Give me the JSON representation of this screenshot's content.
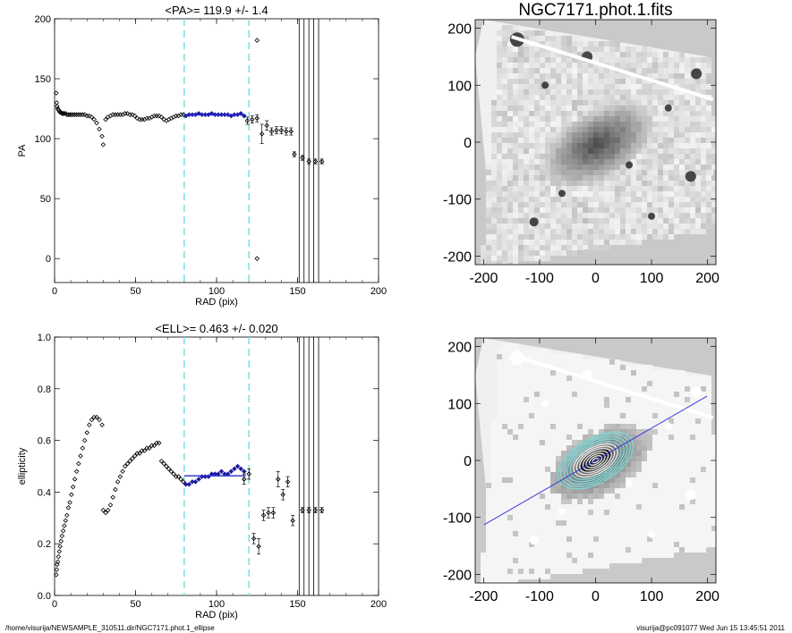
{
  "footer": {
    "path": "/home/visurija/NEWSAMPLE_310511.dir/NGC7171.phot.1_ellipse",
    "user_date": "visurija@pc091077  Wed Jun 15 13:45:51 2011"
  },
  "colors": {
    "data": "#000000",
    "fit_region": "#1a1aa0",
    "mean_line": "#2b2bcf",
    "limit_lines": "#7fe3e3",
    "ellipse_contours": "#7fd8d8",
    "major_axis": "#3a3adb"
  },
  "chart_data": [
    {
      "type": "scatter",
      "title": "<PA>= 119.9 +/-   1.4",
      "xlabel": "RAD (pix)",
      "ylabel": "PA",
      "xlim": [
        0,
        200
      ],
      "ylim": [
        -20,
        200
      ],
      "xticks": [
        "0",
        "50",
        "100",
        "150",
        "200"
      ],
      "yticks": [
        "0",
        "50",
        "100",
        "150",
        "200"
      ],
      "xtick_values": [
        0,
        50,
        100,
        150,
        200
      ],
      "ytick_values": [
        0,
        50,
        100,
        150,
        200
      ],
      "mean": 119.9,
      "mean_range": [
        80,
        118
      ],
      "limit_lines_x": [
        80,
        120
      ],
      "vertical_lines_x": [
        151,
        154,
        157,
        160,
        163
      ],
      "series": [
        {
          "style": "black",
          "x": [
            1,
            1.3,
            1.6,
            2,
            2.4,
            2.9,
            3.4,
            4,
            4.6,
            5.3,
            6,
            6.8,
            7.6,
            8.5,
            9.4,
            10.4,
            11.4,
            12.5,
            13.6,
            14.8,
            16,
            17.3,
            18.6,
            20,
            21.4,
            22.9,
            24.4,
            26,
            27.6,
            29.3,
            30,
            31.5,
            33,
            34.5,
            36,
            37.5,
            39,
            40.5,
            42,
            43.5,
            45,
            46.5,
            48,
            49.5,
            51,
            52.5,
            54,
            55.5,
            57,
            58.5,
            60,
            61.5,
            63,
            64.5,
            66,
            67.5,
            69,
            70.5,
            72,
            73.5,
            75,
            76.5,
            78,
            79.5
          ],
          "y": [
            138,
            130,
            127,
            125,
            124,
            123,
            122,
            122,
            121,
            121,
            121,
            121,
            120,
            120,
            120,
            120,
            120,
            120,
            120,
            120,
            120,
            120,
            120,
            119,
            119,
            118,
            116,
            113,
            108,
            102,
            95,
            116,
            118,
            119,
            120,
            120,
            120,
            120,
            120,
            121,
            121,
            120,
            120,
            119,
            117,
            116,
            116,
            116,
            117,
            117,
            118,
            119,
            119,
            119,
            118,
            116,
            115,
            116,
            117,
            118,
            119,
            119,
            120,
            120
          ]
        },
        {
          "style": "blue",
          "x": [
            81,
            83,
            85,
            87,
            89,
            91,
            93,
            95,
            97,
            99,
            101,
            103,
            105,
            107,
            109,
            111,
            113,
            115,
            117
          ],
          "y": [
            119,
            120,
            120,
            120,
            121,
            120,
            120,
            120,
            121,
            120,
            120,
            120,
            120,
            120,
            119,
            120,
            120,
            121,
            119
          ]
        },
        {
          "style": "errorbar",
          "x": [
            119,
            122,
            125,
            128,
            131,
            134,
            137,
            140,
            143,
            146,
            148,
            153,
            157,
            161,
            165
          ],
          "y": [
            115,
            116,
            117,
            104,
            111,
            106,
            107,
            107,
            106,
            106,
            87,
            84,
            81,
            81,
            81
          ],
          "err": [
            3,
            3,
            3,
            8,
            4,
            3,
            3,
            3,
            3,
            3,
            2,
            2,
            2,
            2,
            2
          ]
        },
        {
          "style": "outlier",
          "x": [
            125,
            125
          ],
          "y": [
            182,
            0
          ]
        }
      ]
    },
    {
      "type": "scatter",
      "title": "<ELL>= 0.463 +/-  0.020",
      "xlabel": "RAD (pix)",
      "ylabel": "ellipticity",
      "xlim": [
        0,
        200
      ],
      "ylim": [
        0.0,
        1.0
      ],
      "xticks": [
        "0",
        "50",
        "100",
        "150",
        "200"
      ],
      "yticks": [
        "0.0",
        "0.2",
        "0.4",
        "0.6",
        "0.8",
        "1.0"
      ],
      "xtick_values": [
        0,
        50,
        100,
        150,
        200
      ],
      "ytick_values": [
        0.0,
        0.2,
        0.4,
        0.6,
        0.8,
        1.0
      ],
      "mean": 0.463,
      "mean_range": [
        80,
        118
      ],
      "limit_lines_x": [
        80,
        120
      ],
      "vertical_lines_x": [
        151,
        154,
        157,
        160,
        163
      ],
      "series": [
        {
          "style": "black",
          "x": [
            1,
            1.3,
            1.6,
            2,
            2.4,
            2.9,
            3.4,
            4,
            4.6,
            5.3,
            6,
            6.8,
            7.6,
            8.5,
            9.4,
            10.4,
            11.4,
            12.5,
            13.6,
            14.8,
            16,
            17.3,
            18.6,
            20,
            21.4,
            22.9,
            24.4,
            26,
            27.6,
            29.3,
            30,
            31.5,
            33,
            34.5,
            36,
            37.5,
            39,
            40.5,
            42,
            43.5,
            45,
            46.5,
            48,
            49.5,
            51,
            52.5,
            54,
            55.5,
            57,
            58.5,
            60,
            61.5,
            63,
            64.5,
            66,
            67.5,
            69,
            70.5,
            72,
            73.5,
            75,
            76.5,
            78,
            79.5
          ],
          "y": [
            0.08,
            0.1,
            0.12,
            0.13,
            0.15,
            0.17,
            0.19,
            0.21,
            0.23,
            0.25,
            0.27,
            0.29,
            0.31,
            0.34,
            0.36,
            0.39,
            0.42,
            0.45,
            0.48,
            0.51,
            0.54,
            0.57,
            0.6,
            0.63,
            0.66,
            0.68,
            0.69,
            0.69,
            0.68,
            0.66,
            0.33,
            0.32,
            0.33,
            0.35,
            0.38,
            0.41,
            0.44,
            0.46,
            0.48,
            0.5,
            0.51,
            0.52,
            0.53,
            0.54,
            0.55,
            0.55,
            0.56,
            0.56,
            0.57,
            0.57,
            0.58,
            0.58,
            0.59,
            0.59,
            0.52,
            0.51,
            0.5,
            0.49,
            0.48,
            0.47,
            0.46,
            0.46,
            0.45,
            0.44
          ]
        },
        {
          "style": "blue",
          "x": [
            81,
            83,
            85,
            87,
            89,
            91,
            93,
            95,
            97,
            99,
            101,
            103,
            105,
            107,
            109,
            111,
            113,
            115,
            117
          ],
          "y": [
            0.43,
            0.43,
            0.44,
            0.44,
            0.45,
            0.46,
            0.46,
            0.46,
            0.47,
            0.47,
            0.47,
            0.48,
            0.47,
            0.47,
            0.48,
            0.49,
            0.5,
            0.49,
            0.48
          ]
        },
        {
          "style": "errorbar",
          "x": [
            117,
            120,
            123,
            126,
            129,
            132,
            135,
            138,
            141,
            144,
            147,
            153,
            157,
            161,
            165
          ],
          "y": [
            0.45,
            0.47,
            0.22,
            0.19,
            0.31,
            0.32,
            0.32,
            0.45,
            0.39,
            0.44,
            0.29,
            0.33,
            0.33,
            0.33,
            0.33
          ],
          "err": [
            0.02,
            0.02,
            0.02,
            0.03,
            0.02,
            0.02,
            0.02,
            0.03,
            0.02,
            0.02,
            0.02,
            0.01,
            0.01,
            0.01,
            0.01
          ]
        }
      ]
    },
    {
      "type": "heatmap",
      "title": "NGC7171.phot.1.fits",
      "xlabel": "",
      "ylabel": "",
      "xlim": [
        -215,
        215
      ],
      "ylim": [
        -215,
        215
      ],
      "xticks": [
        "-200",
        "-100",
        "0",
        "100",
        "200"
      ],
      "yticks": [
        "-200",
        "-100",
        "0",
        "100",
        "200"
      ],
      "xtick_values": [
        -200,
        -100,
        0,
        100,
        200
      ],
      "ytick_values": [
        -200,
        -100,
        0,
        100,
        200
      ]
    },
    {
      "type": "heatmap",
      "title": "",
      "xlabel": "",
      "ylabel": "",
      "xlim": [
        -215,
        215
      ],
      "ylim": [
        -215,
        215
      ],
      "xticks": [
        "-200",
        "-100",
        "0",
        "100",
        "200"
      ],
      "yticks": [
        "-200",
        "-100",
        "0",
        "100",
        "200"
      ],
      "xtick_values": [
        -200,
        -100,
        0,
        100,
        200
      ],
      "ytick_values": [
        -200,
        -100,
        0,
        100,
        200
      ],
      "position_angle": 119.9,
      "ellipticity": 0.463
    }
  ]
}
